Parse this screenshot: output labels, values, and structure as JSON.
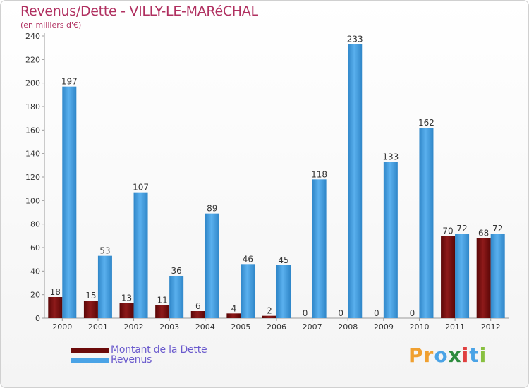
{
  "chart_data": {
    "type": "bar",
    "title": "Revenus/Dette - VILLY-LE-MARéCHAL",
    "subtitle": "(en milliers d'€)",
    "categories": [
      "2000",
      "2001",
      "2002",
      "2003",
      "2004",
      "2005",
      "2006",
      "2007",
      "2008",
      "2009",
      "2010",
      "2011",
      "2012"
    ],
    "series": [
      {
        "name": "Montant de la Dette",
        "color": "#7a1010",
        "values": [
          18,
          15,
          13,
          11,
          6,
          4,
          2,
          0,
          0,
          0,
          0,
          70,
          68
        ]
      },
      {
        "name": "Revenus",
        "color": "#4aa3e6",
        "values": [
          197,
          53,
          107,
          36,
          89,
          46,
          45,
          118,
          233,
          133,
          162,
          72,
          72
        ]
      }
    ],
    "ylim": [
      0,
      240
    ],
    "yticks": [
      0,
      20,
      40,
      60,
      80,
      100,
      120,
      140,
      160,
      180,
      200,
      220,
      240
    ],
    "grid": false,
    "legend_position": "bottom-left"
  },
  "legend": {
    "items": [
      {
        "label": "Montant de la Dette",
        "color": "#6b0a0a"
      },
      {
        "label": "Revenus",
        "color": "#4aa3e6"
      }
    ]
  },
  "brand": {
    "letters": [
      "P",
      "r",
      "o",
      "x",
      "i",
      "t",
      "i"
    ],
    "colors": [
      "#f0a030",
      "#f0a030",
      "#4aa3e6",
      "#2e8b3e",
      "#e04040",
      "#4aa3e6",
      "#88c040"
    ]
  }
}
